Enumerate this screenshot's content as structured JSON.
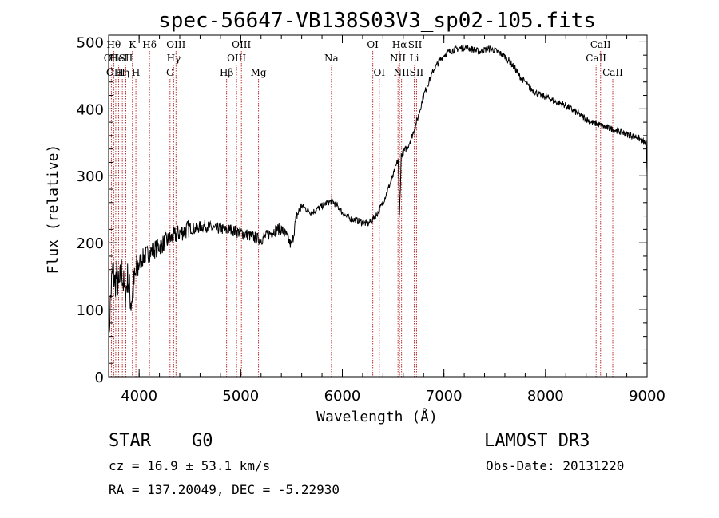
{
  "chart_data": {
    "type": "line",
    "title": "spec-56647-VB138S03V3_sp02-105.fits",
    "xlabel": "Wavelength (Å)",
    "ylabel": "Flux (relative)",
    "xlim": [
      3700,
      9000
    ],
    "ylim": [
      0,
      510
    ],
    "xticks": [
      4000,
      5000,
      6000,
      7000,
      8000,
      9000
    ],
    "yticks": [
      0,
      100,
      200,
      300,
      400,
      500
    ],
    "series": [
      {
        "name": "flux",
        "x": [
          3700,
          3720,
          3740,
          3760,
          3780,
          3800,
          3830,
          3860,
          3890,
          3920,
          3950,
          3980,
          4000,
          4050,
          4100,
          4150,
          4200,
          4250,
          4300,
          4350,
          4400,
          4450,
          4500,
          4550,
          4600,
          4650,
          4700,
          4750,
          4800,
          4850,
          4900,
          4950,
          5000,
          5050,
          5100,
          5150,
          5200,
          5250,
          5300,
          5350,
          5400,
          5450,
          5500,
          5550,
          5600,
          5650,
          5700,
          5750,
          5800,
          5850,
          5900,
          5950,
          6000,
          6050,
          6100,
          6150,
          6200,
          6250,
          6300,
          6350,
          6400,
          6450,
          6500,
          6530,
          6550,
          6563,
          6580,
          6600,
          6650,
          6700,
          6750,
          6800,
          6850,
          6900,
          6950,
          7000,
          7050,
          7100,
          7150,
          7200,
          7250,
          7300,
          7350,
          7400,
          7450,
          7500,
          7550,
          7600,
          7650,
          7700,
          7750,
          7800,
          7850,
          7900,
          7950,
          8000,
          8050,
          8100,
          8150,
          8200,
          8250,
          8300,
          8350,
          8400,
          8450,
          8500,
          8550,
          8600,
          8650,
          8700,
          8750,
          8800,
          8850,
          8900,
          8950,
          8990,
          9000
        ],
        "y": [
          50,
          120,
          160,
          140,
          150,
          130,
          160,
          120,
          150,
          110,
          140,
          160,
          170,
          180,
          185,
          190,
          195,
          200,
          205,
          210,
          215,
          218,
          222,
          220,
          224,
          225,
          223,
          220,
          222,
          218,
          220,
          217,
          215,
          213,
          210,
          207,
          205,
          210,
          215,
          220,
          220,
          210,
          195,
          240,
          255,
          250,
          245,
          250,
          255,
          260,
          262,
          255,
          245,
          238,
          235,
          233,
          230,
          228,
          235,
          245,
          260,
          280,
          300,
          315,
          325,
          240,
          330,
          335,
          345,
          365,
          390,
          420,
          440,
          458,
          470,
          480,
          485,
          488,
          490,
          492,
          490,
          488,
          485,
          488,
          490,
          487,
          483,
          478,
          470,
          460,
          448,
          440,
          430,
          425,
          420,
          418,
          415,
          410,
          408,
          405,
          400,
          395,
          390,
          385,
          380,
          378,
          375,
          372,
          370,
          368,
          365,
          362,
          360,
          358,
          352,
          348,
          300
        ]
      }
    ],
    "line_markers": [
      {
        "w": 3727,
        "label": "OII",
        "row": 1
      },
      {
        "w": 3750,
        "label": "Hθ",
        "row": 0
      },
      {
        "w": 3770,
        "label": "OIII",
        "row": 2
      },
      {
        "w": 3798,
        "label": "HeI",
        "row": 1
      },
      {
        "w": 3835,
        "label": "Hη",
        "row": 2
      },
      {
        "w": 3869,
        "label": "SII",
        "row": 1
      },
      {
        "w": 3934,
        "label": "K",
        "row": 0
      },
      {
        "w": 3968,
        "label": "H",
        "row": 2
      },
      {
        "w": 4102,
        "label": "Hδ",
        "row": 0
      },
      {
        "w": 4304,
        "label": "G",
        "row": 2
      },
      {
        "w": 4340,
        "label": "Hγ",
        "row": 1
      },
      {
        "w": 4363,
        "label": "OIII",
        "row": 0
      },
      {
        "w": 4861,
        "label": "Hβ",
        "row": 2
      },
      {
        "w": 4959,
        "label": "OIII",
        "row": 1
      },
      {
        "w": 5007,
        "label": "OIII",
        "row": 0
      },
      {
        "w": 5175,
        "label": "Mg",
        "row": 2
      },
      {
        "w": 5893,
        "label": "Na",
        "row": 1
      },
      {
        "w": 6300,
        "label": "OI",
        "row": 0
      },
      {
        "w": 6364,
        "label": "OI",
        "row": 2
      },
      {
        "w": 6548,
        "label": "NII",
        "row": 1
      },
      {
        "w": 6563,
        "label": "Hα",
        "row": 0
      },
      {
        "w": 6583,
        "label": "NII",
        "row": 2
      },
      {
        "w": 6708,
        "label": "Li",
        "row": 1
      },
      {
        "w": 6716,
        "label": "SII",
        "row": 0
      },
      {
        "w": 6731,
        "label": "SII",
        "row": 2
      },
      {
        "w": 8498,
        "label": "CaII",
        "row": 1
      },
      {
        "w": 8542,
        "label": "CaII",
        "row": 0
      },
      {
        "w": 8662,
        "label": "CaII",
        "row": 2
      }
    ],
    "colors": {
      "spectrum": "#000000",
      "markers": "#c03030",
      "axes": "#000000"
    }
  },
  "footer": {
    "class_label": "STAR",
    "subclass": "G0",
    "survey": "LAMOST DR3",
    "cz": "cz = 16.9 ± 53.1 km/s",
    "obs_date": "Obs-Date: 20131220",
    "coords": "RA = 137.20049, DEC =  -5.22930"
  }
}
